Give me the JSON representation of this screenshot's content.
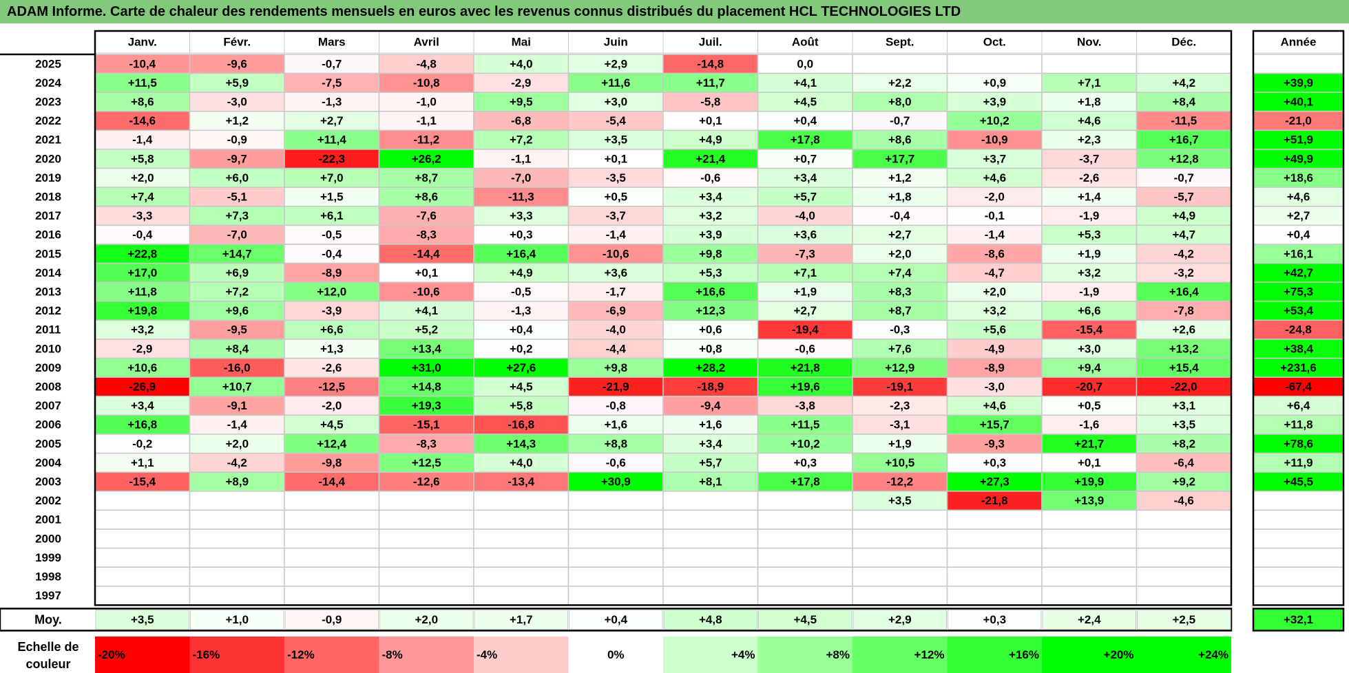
{
  "title": "ADAM Informe. Carte de chaleur des rendements mensuels en euros avec les revenus connus distribués du placement HCL TECHNOLOGIES LTD",
  "colors": {
    "title_bg": "#83c97c",
    "negative_max": "#ff0000",
    "neutral": "#ffffff",
    "positive_max": "#00ff00",
    "grid": "#c8c8c8"
  },
  "chart_data": {
    "type": "heatmap",
    "months": [
      "Janv.",
      "Févr.",
      "Mars",
      "Avril",
      "Mai",
      "Juin",
      "Juil.",
      "Août",
      "Sept.",
      "Oct.",
      "Nov.",
      "Déc."
    ],
    "year_header": "Année",
    "years": [
      "2025",
      "2024",
      "2023",
      "2022",
      "2021",
      "2020",
      "2019",
      "2018",
      "2017",
      "2016",
      "2015",
      "2014",
      "2013",
      "2012",
      "2011",
      "2010",
      "2009",
      "2008",
      "2007",
      "2006",
      "2005",
      "2004",
      "2003",
      "2002",
      "2001",
      "2000",
      "1999",
      "1998",
      "1997"
    ],
    "values": [
      [
        "-10,4",
        "-9,6",
        "-0,7",
        "-4,8",
        "+4,0",
        "+2,9",
        "-14,8",
        "0,0",
        "",
        "",
        "",
        ""
      ],
      [
        "+11,5",
        "+5,9",
        "-7,5",
        "-10,8",
        "-2,9",
        "+11,6",
        "+11,7",
        "+4,1",
        "+2,2",
        "+0,9",
        "+7,1",
        "+4,2"
      ],
      [
        "+8,6",
        "-3,0",
        "-1,3",
        "-1,0",
        "+9,5",
        "+3,0",
        "-5,8",
        "+4,5",
        "+8,0",
        "+3,9",
        "+1,8",
        "+8,4"
      ],
      [
        "-14,6",
        "+1,2",
        "+2,7",
        "-1,1",
        "-6,8",
        "-5,4",
        "+0,1",
        "+0,4",
        "-0,7",
        "+10,2",
        "+4,6",
        "-11,5"
      ],
      [
        "-1,4",
        "-0,9",
        "+11,4",
        "-11,2",
        "+7,2",
        "+3,5",
        "+4,9",
        "+17,8",
        "+8,6",
        "-10,9",
        "+2,3",
        "+16,7"
      ],
      [
        "+5,8",
        "-9,7",
        "-22,3",
        "+26,2",
        "-1,1",
        "+0,1",
        "+21,4",
        "+0,7",
        "+17,7",
        "+3,7",
        "-3,7",
        "+12,8"
      ],
      [
        "+2,0",
        "+6,0",
        "+7,0",
        "+8,7",
        "-7,0",
        "-3,5",
        "-0,6",
        "+3,4",
        "+1,2",
        "+4,6",
        "-2,6",
        "-0,7"
      ],
      [
        "+7,4",
        "-5,1",
        "+1,5",
        "+8,6",
        "-11,3",
        "+0,5",
        "+3,4",
        "+5,7",
        "+1,8",
        "-2,0",
        "+1,4",
        "-5,7"
      ],
      [
        "-3,3",
        "+7,3",
        "+6,1",
        "-7,6",
        "+3,3",
        "-3,7",
        "+3,2",
        "-4,0",
        "-0,4",
        "-0,1",
        "-1,9",
        "+4,9"
      ],
      [
        "-0,4",
        "-7,0",
        "-0,5",
        "-8,3",
        "+0,3",
        "-1,4",
        "+3,9",
        "+3,6",
        "+2,7",
        "-1,4",
        "+5,3",
        "+4,7"
      ],
      [
        "+22,8",
        "+14,7",
        "-0,4",
        "-14,4",
        "+16,4",
        "-10,6",
        "+9,8",
        "-7,3",
        "+2,0",
        "-8,6",
        "+1,9",
        "-4,2"
      ],
      [
        "+17,0",
        "+6,9",
        "-8,9",
        "+0,1",
        "+4,9",
        "+3,6",
        "+5,3",
        "+7,1",
        "+7,4",
        "-4,7",
        "+3,2",
        "-3,2"
      ],
      [
        "+11,8",
        "+7,2",
        "+12,0",
        "-10,6",
        "-0,5",
        "-1,7",
        "+16,6",
        "+1,9",
        "+8,3",
        "+2,0",
        "-1,9",
        "+16,4"
      ],
      [
        "+19,8",
        "+9,6",
        "-3,9",
        "+4,1",
        "-1,3",
        "-6,9",
        "+12,3",
        "+2,7",
        "+8,7",
        "+3,2",
        "+6,6",
        "-7,8"
      ],
      [
        "+3,2",
        "-9,5",
        "+6,6",
        "+5,2",
        "+0,4",
        "-4,0",
        "+0,6",
        "-19,4",
        "-0,3",
        "+5,6",
        "-15,4",
        "+2,6"
      ],
      [
        "-2,9",
        "+8,4",
        "+1,3",
        "+13,4",
        "+0,2",
        "-4,4",
        "+0,8",
        "-0,6",
        "+7,6",
        "-4,9",
        "+3,0",
        "+13,2"
      ],
      [
        "+10,6",
        "-16,0",
        "-2,6",
        "+31,0",
        "+27,6",
        "+9,8",
        "+28,2",
        "+21,8",
        "+12,9",
        "-8,9",
        "+9,4",
        "+15,4"
      ],
      [
        "-26,9",
        "+10,7",
        "-12,5",
        "+14,8",
        "+4,5",
        "-21,9",
        "-18,9",
        "+19,6",
        "-19,1",
        "-3,0",
        "-20,7",
        "-22,0"
      ],
      [
        "+3,4",
        "-9,1",
        "-2,0",
        "+19,3",
        "+5,8",
        "-0,8",
        "-9,4",
        "-3,8",
        "-2,3",
        "+4,6",
        "+0,5",
        "+3,1"
      ],
      [
        "+16,8",
        "-1,4",
        "+4,5",
        "-15,1",
        "-16,8",
        "+1,6",
        "+1,6",
        "+11,5",
        "-3,1",
        "+15,7",
        "-1,6",
        "+3,5"
      ],
      [
        "-0,2",
        "+2,0",
        "+12,4",
        "-8,3",
        "+14,3",
        "+8,8",
        "+3,4",
        "+10,2",
        "+1,9",
        "-9,3",
        "+21,7",
        "+8,2"
      ],
      [
        "+1,1",
        "-4,2",
        "-9,8",
        "+12,5",
        "+4,0",
        "-0,6",
        "+5,7",
        "+0,3",
        "+10,5",
        "+0,3",
        "+0,1",
        "-6,4"
      ],
      [
        "-15,4",
        "+8,9",
        "-14,4",
        "-12,6",
        "-13,4",
        "+30,9",
        "+8,1",
        "+17,8",
        "-12,2",
        "+27,3",
        "+19,9",
        "+9,2"
      ],
      [
        "",
        "",
        "",
        "",
        "",
        "",
        "",
        "",
        "+3,5",
        "-21,8",
        "+13,9",
        "-4,6"
      ],
      [
        "",
        "",
        "",
        "",
        "",
        "",
        "",
        "",
        "",
        "",
        "",
        ""
      ],
      [
        "",
        "",
        "",
        "",
        "",
        "",
        "",
        "",
        "",
        "",
        "",
        ""
      ],
      [
        "",
        "",
        "",
        "",
        "",
        "",
        "",
        "",
        "",
        "",
        "",
        ""
      ],
      [
        "",
        "",
        "",
        "",
        "",
        "",
        "",
        "",
        "",
        "",
        "",
        ""
      ],
      [
        "",
        "",
        "",
        "",
        "",
        "",
        "",
        "",
        "",
        "",
        "",
        ""
      ]
    ],
    "annual": [
      "",
      "+39,9",
      "+40,1",
      "-21,0",
      "+51,9",
      "+49,9",
      "+18,6",
      "+4,6",
      "+2,7",
      "+0,4",
      "+16,1",
      "+42,7",
      "+75,3",
      "+53,4",
      "-24,8",
      "+38,4",
      "+231,6",
      "-67,4",
      "+6,4",
      "+11,8",
      "+78,6",
      "+11,9",
      "+45,5",
      "",
      "",
      "",
      "",
      "",
      ""
    ],
    "avg_label": "Moy.",
    "averages": [
      "+3,5",
      "+1,0",
      "-0,9",
      "+2,0",
      "+1,7",
      "+0,4",
      "+4,8",
      "+4,5",
      "+2,9",
      "+0,3",
      "+2,4",
      "+2,5"
    ],
    "avg_annual": "+32,1",
    "scale_label": [
      "Echelle de",
      "couleur"
    ],
    "scale": [
      "-20%",
      "-16%",
      "-12%",
      "-8%",
      "-4%",
      "0%",
      "+4%",
      "+8%",
      "+12%",
      "+16%",
      "+20%",
      "+24%"
    ]
  }
}
